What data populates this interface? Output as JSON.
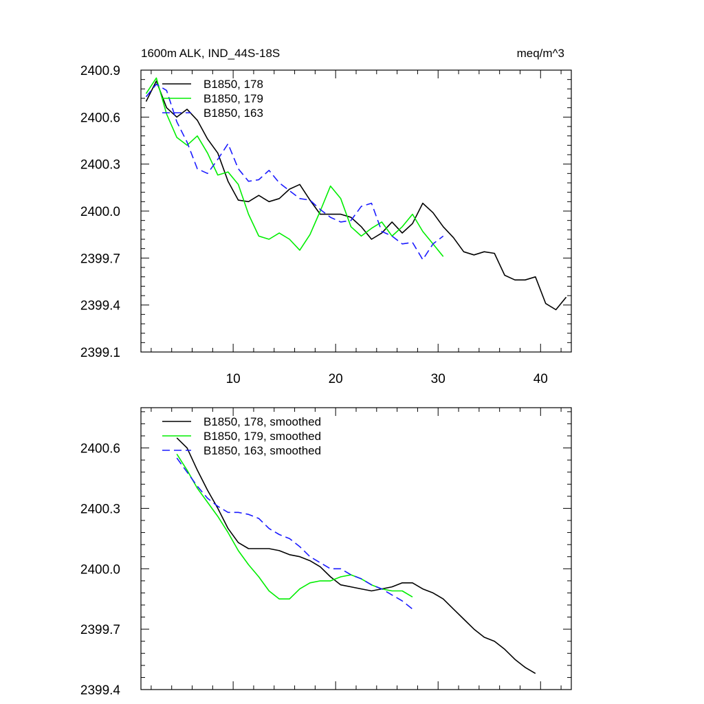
{
  "chart_data": [
    {
      "type": "line",
      "title": "1600m ALK, IND_44S-18S",
      "units": "meq/m^3",
      "xlim": [
        1,
        43
      ],
      "ylim": [
        2399.1,
        2400.9
      ],
      "yticks": [
        "2399.1",
        "2399.4",
        "2399.7",
        "2400.0",
        "2400.3",
        "2400.6",
        "2400.9"
      ],
      "xticks": [
        "10",
        "20",
        "30",
        "40"
      ],
      "series": [
        {
          "name": "B1850, 178",
          "color": "#000000",
          "dash": "solid",
          "x": [
            1.5,
            2.5,
            3.5,
            4.5,
            5.5,
            6.5,
            7.5,
            8.5,
            9.5,
            10.5,
            11.5,
            12.5,
            13.5,
            14.5,
            15.5,
            16.5,
            17.5,
            18.5,
            19.5,
            20.5,
            21.5,
            22.5,
            23.5,
            24.5,
            25.5,
            26.5,
            27.5,
            28.5,
            29.5,
            30.5,
            31.5,
            32.5,
            33.5,
            34.5,
            35.5,
            36.5,
            37.5,
            38.5,
            39.5,
            40.5,
            41.5,
            42.5
          ],
          "y": [
            2400.7,
            2400.83,
            2400.66,
            2400.6,
            2400.65,
            2400.58,
            2400.46,
            2400.37,
            2400.19,
            2400.07,
            2400.06,
            2400.1,
            2400.06,
            2400.08,
            2400.14,
            2400.17,
            2400.07,
            2399.98,
            2399.98,
            2399.98,
            2399.96,
            2399.9,
            2399.82,
            2399.86,
            2399.93,
            2399.86,
            2399.92,
            2400.05,
            2399.99,
            2399.9,
            2399.83,
            2399.74,
            2399.72,
            2399.74,
            2399.73,
            2399.59,
            2399.56,
            2399.56,
            2399.58,
            2399.41,
            2399.37,
            2399.45
          ]
        },
        {
          "name": "B1850, 179",
          "color": "#00ee00",
          "dash": "solid",
          "x": [
            1.5,
            2.5,
            3.5,
            4.5,
            5.5,
            6.5,
            7.5,
            8.5,
            9.5,
            10.5,
            11.5,
            12.5,
            13.5,
            14.5,
            15.5,
            16.5,
            17.5,
            18.5,
            19.5,
            20.5,
            21.5,
            22.5,
            23.5,
            24.5,
            25.5,
            26.5,
            27.5,
            28.5,
            29.5,
            30.5
          ],
          "y": [
            2400.75,
            2400.85,
            2400.62,
            2400.47,
            2400.42,
            2400.48,
            2400.37,
            2400.23,
            2400.25,
            2400.17,
            2399.98,
            2399.84,
            2399.82,
            2399.86,
            2399.82,
            2399.75,
            2399.85,
            2400.0,
            2400.16,
            2400.08,
            2399.9,
            2399.84,
            2399.89,
            2399.93,
            2399.84,
            2399.9,
            2399.98,
            2399.87,
            2399.79,
            2399.71
          ]
        },
        {
          "name": "B1850, 163",
          "color": "#1a1aff",
          "dash": "dashed",
          "x": [
            1.5,
            2.5,
            3.5,
            4.5,
            5.5,
            6.5,
            7.5,
            8.5,
            9.5,
            10.5,
            11.5,
            12.5,
            13.5,
            14.5,
            15.5,
            16.5,
            17.5,
            18.5,
            19.5,
            20.5,
            21.5,
            22.5,
            23.5,
            24.5,
            25.5,
            26.5,
            27.5,
            28.5,
            29.5,
            30.5
          ],
          "y": [
            2400.73,
            2400.81,
            2400.77,
            2400.57,
            2400.44,
            2400.27,
            2400.24,
            2400.33,
            2400.43,
            2400.27,
            2400.19,
            2400.2,
            2400.26,
            2400.18,
            2400.13,
            2400.08,
            2400.07,
            2400.01,
            2399.96,
            2399.93,
            2399.94,
            2400.03,
            2400.05,
            2399.87,
            2399.84,
            2399.79,
            2399.8,
            2399.69,
            2399.79,
            2399.84
          ]
        }
      ]
    },
    {
      "type": "line",
      "xlim": [
        1,
        43
      ],
      "ylim": [
        2399.4,
        2400.8
      ],
      "yticks": [
        "2399.4",
        "2399.7",
        "2400.0",
        "2400.3",
        "2400.6"
      ],
      "series": [
        {
          "name": "B1850, 178, smoothed",
          "color": "#000000",
          "dash": "solid",
          "x": [
            4.5,
            5.5,
            6.5,
            7.5,
            8.5,
            9.5,
            10.5,
            11.5,
            12.5,
            13.5,
            14.5,
            15.5,
            16.5,
            17.5,
            18.5,
            19.5,
            20.5,
            21.5,
            22.5,
            23.5,
            24.5,
            25.5,
            26.5,
            27.5,
            28.5,
            29.5,
            30.5,
            31.5,
            32.5,
            33.5,
            34.5,
            35.5,
            36.5,
            37.5,
            38.5,
            39.5
          ],
          "y": [
            2400.65,
            2400.6,
            2400.49,
            2400.39,
            2400.3,
            2400.2,
            2400.13,
            2400.1,
            2400.1,
            2400.1,
            2400.09,
            2400.07,
            2400.06,
            2400.04,
            2400.01,
            2399.96,
            2399.92,
            2399.91,
            2399.9,
            2399.89,
            2399.9,
            2399.91,
            2399.93,
            2399.93,
            2399.9,
            2399.88,
            2399.85,
            2399.8,
            2399.75,
            2399.7,
            2399.66,
            2399.64,
            2399.6,
            2399.55,
            2399.51,
            2399.48
          ]
        },
        {
          "name": "B1850, 179, smoothed",
          "color": "#00ee00",
          "dash": "solid",
          "x": [
            4.5,
            5.5,
            6.5,
            7.5,
            8.5,
            9.5,
            10.5,
            11.5,
            12.5,
            13.5,
            14.5,
            15.5,
            16.5,
            17.5,
            18.5,
            19.5,
            20.5,
            21.5,
            22.5,
            23.5,
            24.5,
            25.5,
            26.5,
            27.5
          ],
          "y": [
            2400.57,
            2400.49,
            2400.4,
            2400.33,
            2400.26,
            2400.18,
            2400.09,
            2400.02,
            2399.96,
            2399.89,
            2399.85,
            2399.85,
            2399.9,
            2399.93,
            2399.94,
            2399.94,
            2399.96,
            2399.97,
            2399.95,
            2399.92,
            2399.9,
            2399.89,
            2399.89,
            2399.86
          ]
        },
        {
          "name": "B1850, 163, smoothed",
          "color": "#1a1aff",
          "dash": "dashed",
          "x": [
            4.5,
            5.5,
            6.5,
            7.5,
            8.5,
            9.5,
            10.5,
            11.5,
            12.5,
            13.5,
            14.5,
            15.5,
            16.5,
            17.5,
            18.5,
            19.5,
            20.5,
            21.5,
            22.5,
            23.5,
            24.5,
            25.5,
            26.5,
            27.5
          ],
          "y": [
            2400.55,
            2400.48,
            2400.41,
            2400.35,
            2400.31,
            2400.28,
            2400.28,
            2400.27,
            2400.25,
            2400.2,
            2400.17,
            2400.15,
            2400.11,
            2400.06,
            2400.03,
            2400.0,
            2400.0,
            2399.97,
            2399.95,
            2399.92,
            2399.9,
            2399.87,
            2399.84,
            2399.8
          ]
        }
      ]
    }
  ]
}
